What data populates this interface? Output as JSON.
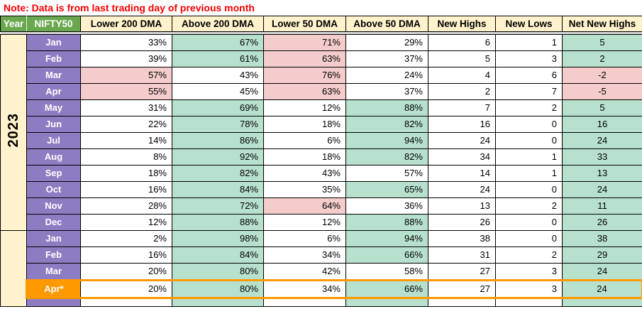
{
  "note": {
    "text": "Note: Data is from last trading day of previous month"
  },
  "colors": {
    "note_red": "#ff0000",
    "hdr_green": "#6aa84f",
    "cream": "#fff2cc",
    "purple": "#8e7cc3",
    "cell_green": "#b7e1cd",
    "cell_pink": "#f4cccc",
    "orange": "#ff9900",
    "sep": "#d4d4d4"
  },
  "header": {
    "labels": [
      "Year",
      "NIFTY50",
      "Lower 200 DMA",
      "Above 200 DMA",
      "Lower 50 DMA",
      "Above 50 DMA",
      "New Highs",
      "New Lows",
      "Net New Highs"
    ]
  },
  "groups": [
    {
      "year": "2023",
      "rows": [
        {
          "month": "Jan",
          "cells": [
            "33%",
            "67%",
            "71%",
            "29%",
            "6",
            "1",
            "5"
          ],
          "bg": [
            "w",
            "g",
            "p",
            "w",
            "w",
            "w",
            "g"
          ]
        },
        {
          "month": "Feb",
          "cells": [
            "39%",
            "61%",
            "63%",
            "37%",
            "5",
            "3",
            "2"
          ],
          "bg": [
            "w",
            "g",
            "p",
            "w",
            "w",
            "w",
            "g"
          ]
        },
        {
          "month": "Mar",
          "cells": [
            "57%",
            "43%",
            "76%",
            "24%",
            "4",
            "6",
            "-2"
          ],
          "bg": [
            "p",
            "w",
            "p",
            "w",
            "w",
            "w",
            "p"
          ]
        },
        {
          "month": "Apr",
          "cells": [
            "55%",
            "45%",
            "63%",
            "37%",
            "2",
            "7",
            "-5"
          ],
          "bg": [
            "p",
            "w",
            "p",
            "w",
            "w",
            "w",
            "p"
          ]
        },
        {
          "month": "May",
          "cells": [
            "31%",
            "69%",
            "12%",
            "88%",
            "7",
            "2",
            "5"
          ],
          "bg": [
            "w",
            "g",
            "w",
            "g",
            "w",
            "w",
            "g"
          ]
        },
        {
          "month": "Jun",
          "cells": [
            "22%",
            "78%",
            "18%",
            "82%",
            "16",
            "0",
            "16"
          ],
          "bg": [
            "w",
            "g",
            "w",
            "g",
            "w",
            "w",
            "g"
          ]
        },
        {
          "month": "Jul",
          "cells": [
            "14%",
            "86%",
            "6%",
            "94%",
            "24",
            "0",
            "24"
          ],
          "bg": [
            "w",
            "g",
            "w",
            "g",
            "w",
            "w",
            "g"
          ]
        },
        {
          "month": "Aug",
          "cells": [
            "8%",
            "92%",
            "18%",
            "82%",
            "34",
            "1",
            "33"
          ],
          "bg": [
            "w",
            "g",
            "w",
            "g",
            "w",
            "w",
            "g"
          ]
        },
        {
          "month": "Sep",
          "cells": [
            "18%",
            "82%",
            "43%",
            "57%",
            "14",
            "1",
            "13"
          ],
          "bg": [
            "w",
            "g",
            "w",
            "w",
            "w",
            "w",
            "g"
          ]
        },
        {
          "month": "Oct",
          "cells": [
            "16%",
            "84%",
            "35%",
            "65%",
            "24",
            "0",
            "24"
          ],
          "bg": [
            "w",
            "g",
            "w",
            "g",
            "w",
            "w",
            "g"
          ]
        },
        {
          "month": "Nov",
          "cells": [
            "28%",
            "72%",
            "64%",
            "36%",
            "13",
            "2",
            "11"
          ],
          "bg": [
            "w",
            "g",
            "p",
            "w",
            "w",
            "w",
            "g"
          ]
        },
        {
          "month": "Dec",
          "cells": [
            "12%",
            "88%",
            "12%",
            "88%",
            "26",
            "0",
            "26"
          ],
          "bg": [
            "w",
            "g",
            "w",
            "g",
            "w",
            "w",
            "g"
          ]
        }
      ]
    },
    {
      "year": "",
      "rows": [
        {
          "month": "Jan",
          "cells": [
            "2%",
            "98%",
            "6%",
            "94%",
            "38",
            "0",
            "38"
          ],
          "bg": [
            "w",
            "g",
            "w",
            "g",
            "w",
            "w",
            "g"
          ]
        },
        {
          "month": "Feb",
          "cells": [
            "16%",
            "84%",
            "34%",
            "66%",
            "31",
            "2",
            "29"
          ],
          "bg": [
            "w",
            "g",
            "w",
            "g",
            "w",
            "w",
            "g"
          ]
        },
        {
          "month": "Mar",
          "cells": [
            "20%",
            "80%",
            "42%",
            "58%",
            "27",
            "3",
            "24"
          ],
          "bg": [
            "w",
            "g",
            "w",
            "w",
            "w",
            "w",
            "g"
          ]
        },
        {
          "month": "Apr*",
          "cells": [
            "20%",
            "80%",
            "34%",
            "66%",
            "27",
            "3",
            "24"
          ],
          "bg": [
            "w",
            "g",
            "w",
            "g",
            "w",
            "w",
            "g"
          ],
          "highlight": true
        },
        {
          "month": "",
          "cells": [
            "",
            "",
            "",
            "",
            "",
            "",
            ""
          ],
          "bg": [
            "w",
            "g",
            "w",
            "g",
            "w",
            "w",
            "g"
          ],
          "partial": true
        }
      ]
    }
  ]
}
